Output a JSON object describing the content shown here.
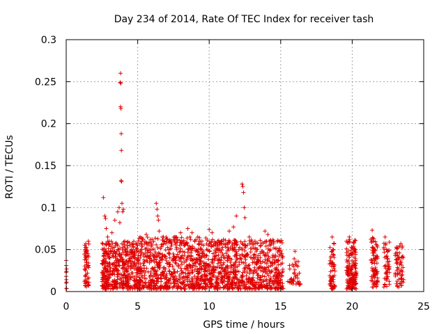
{
  "chart_data": {
    "type": "scatter",
    "title": "Day 234 of 2014, Rate Of TEC Index for receiver tash",
    "xlabel": "GPS time / hours",
    "ylabel": "ROTI / TECUs",
    "xlim": [
      0,
      25
    ],
    "ylim": [
      0,
      0.3
    ],
    "xticks": [
      0,
      5,
      10,
      15,
      20,
      25
    ],
    "xtick_labels": [
      "0",
      "5",
      "10",
      "15",
      "20",
      "25"
    ],
    "yticks": [
      0,
      0.05,
      0.1,
      0.15,
      0.2,
      0.25,
      0.3
    ],
    "ytick_labels": [
      "0",
      "0.05",
      "0.1",
      "0.15",
      "0.2",
      "0.25",
      "0.3"
    ],
    "grid": true,
    "marker": "+",
    "color": "#e00000",
    "series": [
      {
        "name": "ROTI",
        "points": [
          [
            0.0,
            0.037
          ],
          [
            0.0,
            0.031
          ],
          [
            0.0,
            0.023
          ],
          [
            0.0,
            0.018
          ],
          [
            0.0,
            0.01
          ],
          [
            1.3,
            0.055
          ],
          [
            1.35,
            0.048
          ],
          [
            1.4,
            0.042
          ],
          [
            1.45,
            0.038
          ],
          [
            1.5,
            0.03
          ],
          [
            1.55,
            0.06
          ],
          [
            1.4,
            0.02
          ],
          [
            1.5,
            0.015
          ],
          [
            1.35,
            0.025
          ],
          [
            1.45,
            0.01
          ],
          [
            2.6,
            0.112
          ],
          [
            2.7,
            0.09
          ],
          [
            2.75,
            0.087
          ],
          [
            2.8,
            0.075
          ],
          [
            2.9,
            0.065
          ],
          [
            3.0,
            0.06
          ],
          [
            3.2,
            0.07
          ],
          [
            3.4,
            0.085
          ],
          [
            3.6,
            0.095
          ],
          [
            3.7,
            0.1
          ],
          [
            3.75,
            0.082
          ],
          [
            3.8,
            0.26
          ],
          [
            3.78,
            0.249
          ],
          [
            3.82,
            0.248
          ],
          [
            3.8,
            0.22
          ],
          [
            3.83,
            0.218
          ],
          [
            3.85,
            0.188
          ],
          [
            3.86,
            0.168
          ],
          [
            3.84,
            0.132
          ],
          [
            3.87,
            0.131
          ],
          [
            3.9,
            0.105
          ],
          [
            3.95,
            0.095
          ],
          [
            4.0,
            0.098
          ],
          [
            4.1,
            0.06
          ],
          [
            4.3,
            0.055
          ],
          [
            4.6,
            0.05
          ],
          [
            5.0,
            0.055
          ],
          [
            5.3,
            0.06
          ],
          [
            5.6,
            0.068
          ],
          [
            5.9,
            0.062
          ],
          [
            6.3,
            0.105
          ],
          [
            6.35,
            0.098
          ],
          [
            6.4,
            0.09
          ],
          [
            6.45,
            0.085
          ],
          [
            6.5,
            0.072
          ],
          [
            6.8,
            0.065
          ],
          [
            7.2,
            0.06
          ],
          [
            7.6,
            0.065
          ],
          [
            8.0,
            0.07
          ],
          [
            8.5,
            0.075
          ],
          [
            8.8,
            0.07
          ],
          [
            9.2,
            0.065
          ],
          [
            9.6,
            0.055
          ],
          [
            10.0,
            0.074
          ],
          [
            10.2,
            0.07
          ],
          [
            10.6,
            0.06
          ],
          [
            11.0,
            0.062
          ],
          [
            11.4,
            0.072
          ],
          [
            11.7,
            0.077
          ],
          [
            11.9,
            0.09
          ],
          [
            12.3,
            0.128
          ],
          [
            12.35,
            0.125
          ],
          [
            12.4,
            0.118
          ],
          [
            12.45,
            0.1
          ],
          [
            12.5,
            0.088
          ],
          [
            12.8,
            0.065
          ],
          [
            13.2,
            0.06
          ],
          [
            13.6,
            0.055
          ],
          [
            13.9,
            0.072
          ],
          [
            14.1,
            0.068
          ],
          [
            14.5,
            0.06
          ],
          [
            14.9,
            0.06
          ],
          [
            15.1,
            0.058
          ],
          [
            15.5,
            0.012
          ],
          [
            16.0,
            0.048
          ],
          [
            16.2,
            0.03
          ],
          [
            16.3,
            0.022
          ],
          [
            18.6,
            0.065
          ],
          [
            18.65,
            0.05
          ],
          [
            18.7,
            0.03
          ],
          [
            19.6,
            0.06
          ],
          [
            19.8,
            0.065
          ],
          [
            19.9,
            0.045
          ],
          [
            20.0,
            0.052
          ],
          [
            20.1,
            0.035
          ],
          [
            21.4,
            0.073
          ],
          [
            21.5,
            0.06
          ],
          [
            21.6,
            0.04
          ],
          [
            22.3,
            0.065
          ],
          [
            22.4,
            0.05
          ],
          [
            22.5,
            0.03
          ],
          [
            23.1,
            0.052
          ],
          [
            23.3,
            0.046
          ],
          [
            23.4,
            0.057
          ],
          [
            23.5,
            0.02
          ]
        ],
        "bands": [
          {
            "x": [
              0.0,
              0.05
            ],
            "y": [
              0.003,
              0.035
            ],
            "count": 6
          },
          {
            "x": [
              1.25,
              1.6
            ],
            "y": [
              0.005,
              0.058
            ],
            "count": 45
          },
          {
            "x": [
              2.5,
              5.0
            ],
            "y": [
              0.003,
              0.06
            ],
            "count": 420
          },
          {
            "x": [
              5.0,
              10.0
            ],
            "y": [
              0.003,
              0.065
            ],
            "count": 700
          },
          {
            "x": [
              10.0,
              15.2
            ],
            "y": [
              0.003,
              0.062
            ],
            "count": 700
          },
          {
            "x": [
              15.6,
              16.4
            ],
            "y": [
              0.008,
              0.04
            ],
            "count": 35
          },
          {
            "x": [
              18.4,
              18.8
            ],
            "y": [
              0.003,
              0.06
            ],
            "count": 60
          },
          {
            "x": [
              19.6,
              20.3
            ],
            "y": [
              0.003,
              0.062
            ],
            "count": 150
          },
          {
            "x": [
              21.3,
              21.8
            ],
            "y": [
              0.005,
              0.068
            ],
            "count": 80
          },
          {
            "x": [
              22.2,
              22.6
            ],
            "y": [
              0.005,
              0.06
            ],
            "count": 45
          },
          {
            "x": [
              23.0,
              23.6
            ],
            "y": [
              0.005,
              0.055
            ],
            "count": 60
          }
        ]
      }
    ]
  }
}
